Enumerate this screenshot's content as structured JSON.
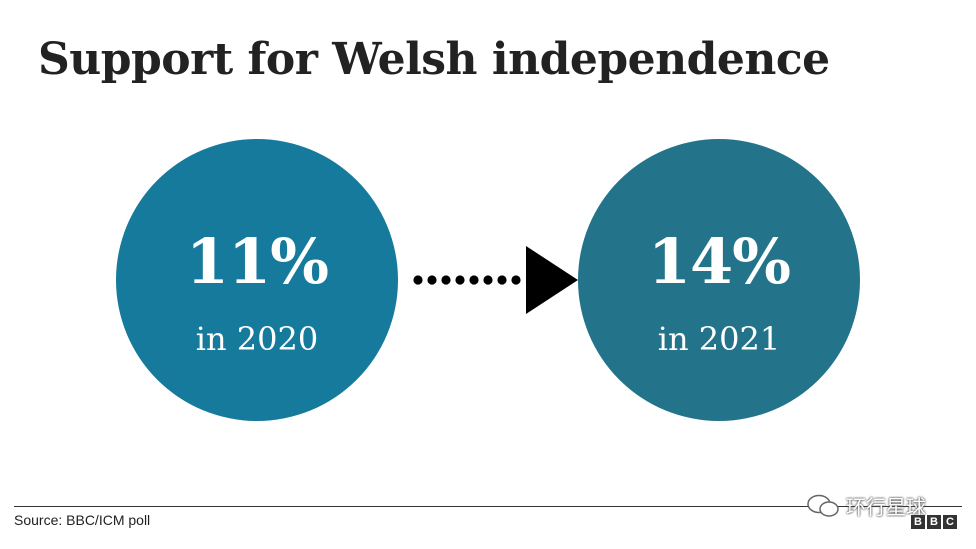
{
  "title": "Support for Welsh independence",
  "colors": {
    "circle_2020": "#157a9c",
    "circle_2021": "#23748b",
    "arrow": "#000000"
  },
  "chart_data": {
    "type": "other",
    "title": "Support for Welsh independence",
    "unit": "%",
    "points": [
      {
        "value": 11,
        "value_label": "11%",
        "year": 2020,
        "year_label": "in 2020"
      },
      {
        "value": 14,
        "value_label": "14%",
        "year": 2021,
        "year_label": "in 2021"
      }
    ]
  },
  "source": "Source: BBC/ICM poll",
  "watermark": "环行星球",
  "logo": [
    "B",
    "B",
    "C"
  ]
}
